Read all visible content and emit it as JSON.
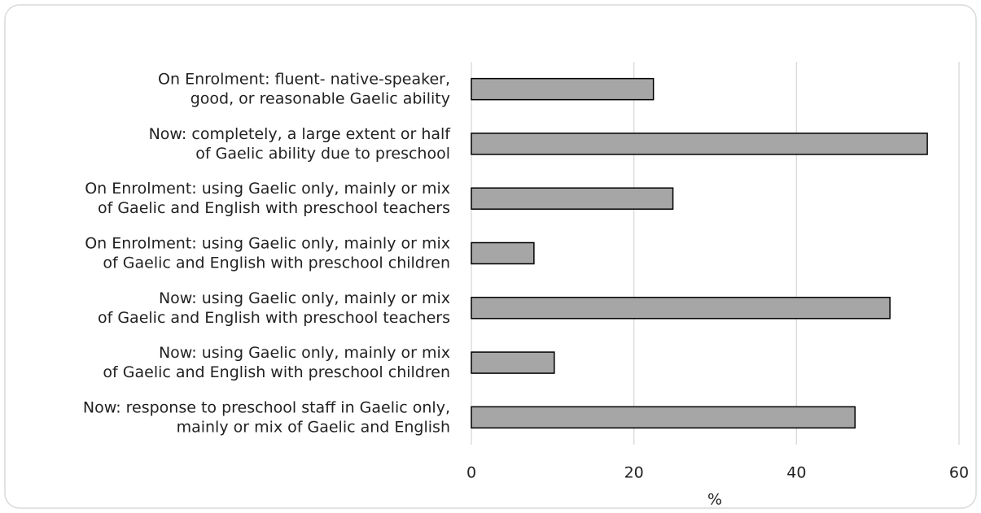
{
  "chart_data": {
    "type": "hbar",
    "categories": [
      "On Enrolment: fluent- native-speaker,\ngood, or reasonable Gaelic ability",
      "Now: completely, a large extent or half\nof Gaelic ability due to preschool",
      "On Enrolment: using Gaelic only, mainly or mix\nof Gaelic and English with preschool teachers",
      "On Enrolment: using Gaelic only, mainly or mix\nof Gaelic and English with preschool children",
      "Now: using Gaelic only, mainly or mix\nof Gaelic and English with preschool teachers",
      "Now: using Gaelic only, mainly or mix\nof Gaelic and English with preschool children",
      "Now: response to preschool staff in Gaelic only,\nmainly or mix of Gaelic and English"
    ],
    "values": [
      22.4,
      56.1,
      24.8,
      7.7,
      51.5,
      10.2,
      47.2
    ],
    "color": "#a6a6a6",
    "xlabel": "%",
    "xlim": [
      0,
      60
    ],
    "xticks": [
      0,
      20,
      40,
      60
    ],
    "grid": true
  }
}
